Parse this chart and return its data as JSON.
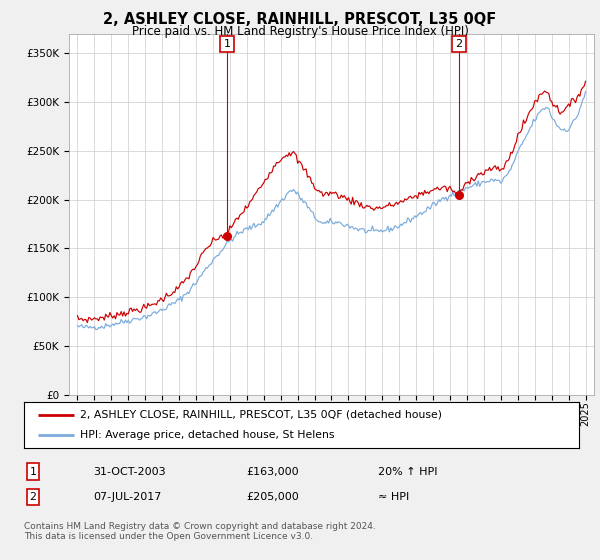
{
  "title": "2, ASHLEY CLOSE, RAINHILL, PRESCOT, L35 0QF",
  "subtitle": "Price paid vs. HM Land Registry's House Price Index (HPI)",
  "ylabel_ticks": [
    "£0",
    "£50K",
    "£100K",
    "£150K",
    "£200K",
    "£250K",
    "£300K",
    "£350K"
  ],
  "ytick_values": [
    0,
    50000,
    100000,
    150000,
    200000,
    250000,
    300000,
    350000
  ],
  "ylim": [
    0,
    370000
  ],
  "xlim_start": 1994.5,
  "xlim_end": 2025.5,
  "sale1_date": 2003.83,
  "sale1_price": 163000,
  "sale2_date": 2017.52,
  "sale2_price": 205000,
  "legend_line1": "2, ASHLEY CLOSE, RAINHILL, PRESCOT, L35 0QF (detached house)",
  "legend_line2": "HPI: Average price, detached house, St Helens",
  "table_row1": [
    "1",
    "31-OCT-2003",
    "£163,000",
    "20% ↑ HPI"
  ],
  "table_row2": [
    "2",
    "07-JUL-2017",
    "£205,000",
    "≈ HPI"
  ],
  "footnote": "Contains HM Land Registry data © Crown copyright and database right 2024.\nThis data is licensed under the Open Government Licence v3.0.",
  "line_color_price": "#cc0000",
  "line_color_hpi": "#7aabdc",
  "bg_color": "#f0f0f0",
  "plot_bg": "#ffffff",
  "grid_color": "#cccccc",
  "hpi_anchors": [
    [
      1995.0,
      70000
    ],
    [
      1995.5,
      69000
    ],
    [
      1996.0,
      69500
    ],
    [
      1996.5,
      70000
    ],
    [
      1997.0,
      72000
    ],
    [
      1997.5,
      74000
    ],
    [
      1998.0,
      76000
    ],
    [
      1998.5,
      78000
    ],
    [
      1999.0,
      80000
    ],
    [
      1999.5,
      83000
    ],
    [
      2000.0,
      87000
    ],
    [
      2000.5,
      92000
    ],
    [
      2001.0,
      97000
    ],
    [
      2001.5,
      105000
    ],
    [
      2002.0,
      115000
    ],
    [
      2002.5,
      127000
    ],
    [
      2003.0,
      138000
    ],
    [
      2003.5,
      148000
    ],
    [
      2004.0,
      158000
    ],
    [
      2004.5,
      165000
    ],
    [
      2005.0,
      170000
    ],
    [
      2005.5,
      173000
    ],
    [
      2006.0,
      178000
    ],
    [
      2006.5,
      188000
    ],
    [
      2007.0,
      198000
    ],
    [
      2007.5,
      208000
    ],
    [
      2007.75,
      210000
    ],
    [
      2008.0,
      205000
    ],
    [
      2008.5,
      195000
    ],
    [
      2009.0,
      182000
    ],
    [
      2009.5,
      175000
    ],
    [
      2010.0,
      177000
    ],
    [
      2010.5,
      176000
    ],
    [
      2011.0,
      173000
    ],
    [
      2011.5,
      170000
    ],
    [
      2012.0,
      168000
    ],
    [
      2012.5,
      167000
    ],
    [
      2013.0,
      168000
    ],
    [
      2013.5,
      170000
    ],
    [
      2014.0,
      173000
    ],
    [
      2014.5,
      178000
    ],
    [
      2015.0,
      183000
    ],
    [
      2015.5,
      188000
    ],
    [
      2016.0,
      194000
    ],
    [
      2016.5,
      200000
    ],
    [
      2017.0,
      205000
    ],
    [
      2017.5,
      207000
    ],
    [
      2018.0,
      212000
    ],
    [
      2018.5,
      215000
    ],
    [
      2019.0,
      218000
    ],
    [
      2019.5,
      220000
    ],
    [
      2020.0,
      218000
    ],
    [
      2020.5,
      228000
    ],
    [
      2021.0,
      248000
    ],
    [
      2021.5,
      265000
    ],
    [
      2022.0,
      282000
    ],
    [
      2022.5,
      293000
    ],
    [
      2022.75,
      295000
    ],
    [
      2023.0,
      285000
    ],
    [
      2023.5,
      272000
    ],
    [
      2024.0,
      272000
    ],
    [
      2024.5,
      285000
    ],
    [
      2025.0,
      310000
    ]
  ],
  "price_anchors": [
    [
      1995.0,
      78000
    ],
    [
      1995.5,
      77000
    ],
    [
      1996.0,
      78000
    ],
    [
      1996.5,
      79000
    ],
    [
      1997.0,
      81000
    ],
    [
      1997.5,
      83000
    ],
    [
      1998.0,
      85000
    ],
    [
      1998.5,
      87000
    ],
    [
      1999.0,
      89000
    ],
    [
      1999.5,
      93000
    ],
    [
      2000.0,
      98000
    ],
    [
      2000.5,
      104000
    ],
    [
      2001.0,
      110000
    ],
    [
      2001.5,
      120000
    ],
    [
      2002.0,
      132000
    ],
    [
      2002.5,
      147000
    ],
    [
      2003.0,
      157000
    ],
    [
      2003.5,
      163000
    ],
    [
      2003.83,
      163000
    ],
    [
      2004.0,
      170000
    ],
    [
      2004.5,
      182000
    ],
    [
      2005.0,
      192000
    ],
    [
      2005.5,
      205000
    ],
    [
      2006.0,
      218000
    ],
    [
      2006.5,
      232000
    ],
    [
      2007.0,
      242000
    ],
    [
      2007.5,
      248000
    ],
    [
      2007.75,
      248000
    ],
    [
      2008.0,
      240000
    ],
    [
      2008.5,
      228000
    ],
    [
      2009.0,
      213000
    ],
    [
      2009.5,
      205000
    ],
    [
      2010.0,
      207000
    ],
    [
      2010.5,
      204000
    ],
    [
      2011.0,
      200000
    ],
    [
      2011.5,
      197000
    ],
    [
      2012.0,
      193000
    ],
    [
      2012.5,
      191000
    ],
    [
      2013.0,
      192000
    ],
    [
      2013.5,
      194000
    ],
    [
      2014.0,
      197000
    ],
    [
      2014.5,
      200000
    ],
    [
      2015.0,
      204000
    ],
    [
      2015.5,
      207000
    ],
    [
      2016.0,
      210000
    ],
    [
      2016.5,
      212000
    ],
    [
      2017.0,
      211000
    ],
    [
      2017.52,
      205000
    ],
    [
      2018.0,
      218000
    ],
    [
      2018.5,
      224000
    ],
    [
      2019.0,
      228000
    ],
    [
      2019.5,
      232000
    ],
    [
      2020.0,
      230000
    ],
    [
      2020.5,
      242000
    ],
    [
      2021.0,
      265000
    ],
    [
      2021.5,
      282000
    ],
    [
      2022.0,
      300000
    ],
    [
      2022.5,
      310000
    ],
    [
      2022.75,
      312000
    ],
    [
      2023.0,
      300000
    ],
    [
      2023.5,
      290000
    ],
    [
      2024.0,
      295000
    ],
    [
      2024.5,
      305000
    ],
    [
      2025.0,
      320000
    ]
  ]
}
